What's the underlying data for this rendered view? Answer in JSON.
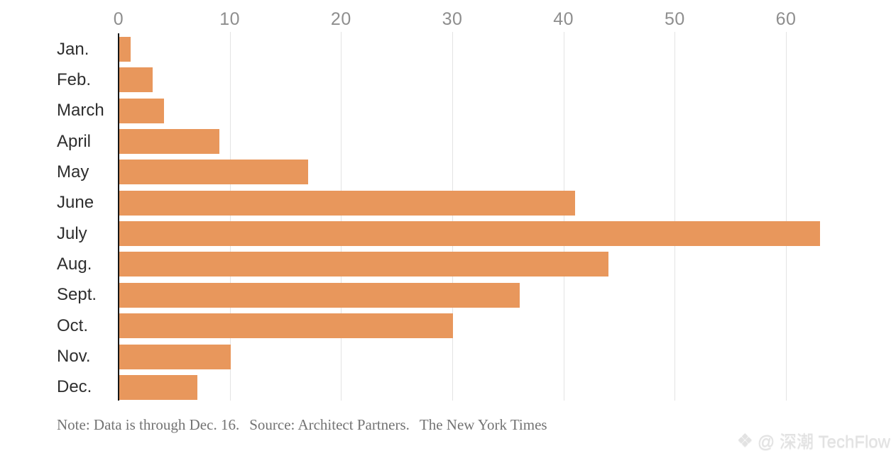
{
  "chart_data": {
    "type": "bar",
    "orientation": "horizontal",
    "title": "",
    "xlabel": "",
    "ylabel": "",
    "categories": [
      "Jan.",
      "Feb.",
      "March",
      "April",
      "May",
      "June",
      "July",
      "Aug.",
      "Sept.",
      "Oct.",
      "Nov.",
      "Dec."
    ],
    "values": [
      1,
      3,
      4,
      9,
      17,
      41,
      63,
      44,
      36,
      30,
      10,
      7
    ],
    "x_ticks": [
      0,
      10,
      20,
      30,
      40,
      50,
      60
    ],
    "xlim": [
      0,
      70
    ],
    "grid": true,
    "tick_position": "top",
    "bar_color": "#e8975c",
    "gridline_color": "#e3e3e3",
    "axis_line_color": "#161616",
    "tick_label_color": "#8e8e8e",
    "category_label_color": "#2e2e2e"
  },
  "footer": {
    "note": "Note: Data is through Dec. 16.",
    "source": "Source: Architect Partners.",
    "credit": "The New York Times",
    "color": "#737373"
  },
  "watermark": {
    "logo_glyph": "❖",
    "text": "@ 深潮 TechFlow",
    "color": "#e2e2e2"
  }
}
